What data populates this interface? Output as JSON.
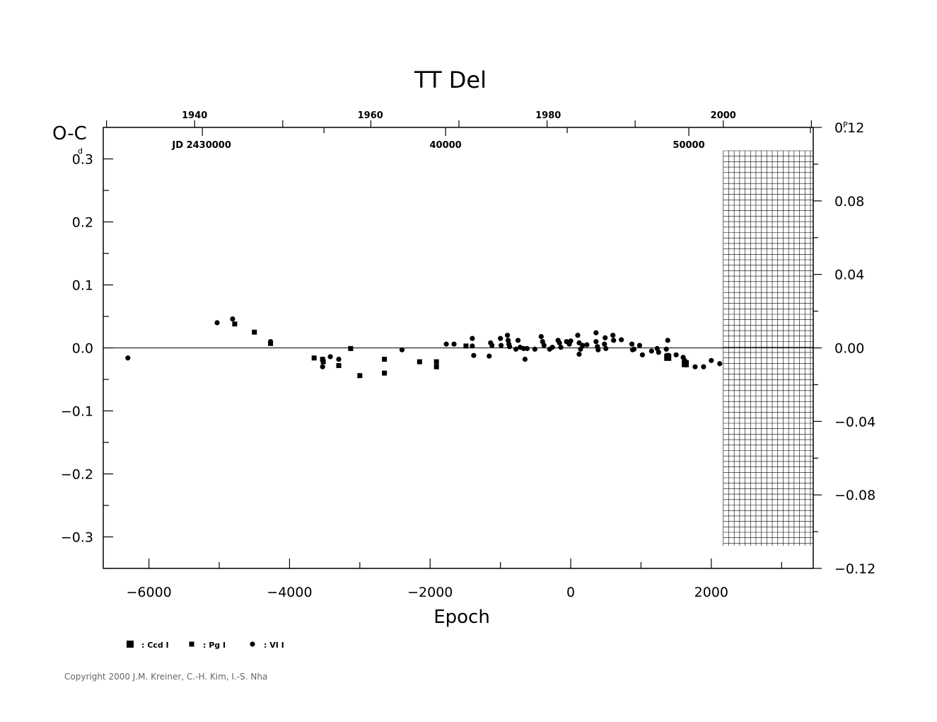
{
  "chart_data": {
    "type": "scatter",
    "title": "TT  Del",
    "ylabel": "O-C",
    "ylabel_unit": "d",
    "right_unit": "P",
    "xlabel": "Epoch",
    "xlim": [
      -6650,
      3450
    ],
    "ylim": [
      -0.35,
      0.35
    ],
    "right_ylim": [
      -0.12,
      0.12
    ],
    "x_ticks": [
      -6000,
      -4000,
      -2000,
      0,
      2000
    ],
    "x_tick_labels": [
      "−6000",
      "−4000",
      "−2000",
      "0",
      "2000"
    ],
    "y_ticks": [
      0.3,
      0.2,
      0.1,
      0.0,
      -0.1,
      -0.2,
      -0.3
    ],
    "y_tick_labels": [
      "0.3",
      "0.2",
      "0.1",
      "0.0",
      "−0.1",
      "−0.2",
      "−0.3"
    ],
    "right_ticks": [
      0.12,
      0.08,
      0.04,
      0.0,
      -0.04,
      -0.08,
      -0.12
    ],
    "right_tick_labels": [
      "0.12",
      "0.08",
      "0.04",
      "0.00",
      "−0.04",
      "−0.08",
      "−0.12"
    ],
    "top_year_ticks": [
      {
        "label": "1940",
        "epoch": -5350
      },
      {
        "label": "1960",
        "epoch": -2850
      },
      {
        "label": "1980",
        "epoch": -320
      },
      {
        "label": "2000",
        "epoch": 2170
      }
    ],
    "jd_ticks": [
      {
        "label": "JD  2430000",
        "epoch": -5250
      },
      {
        "label": "40000",
        "epoch": -1780
      },
      {
        "label": "50000",
        "epoch": 1680
      }
    ],
    "grid": false,
    "zero_line": true,
    "future_hatch_from_epoch": 2170,
    "legend_position": "bottom-left",
    "series": [
      {
        "name": ": Ccd  I",
        "marker": "square-large",
        "points": [
          [
            1380,
            -0.015
          ],
          [
            1630,
            -0.025
          ]
        ]
      },
      {
        "name": ": Pg  I",
        "marker": "square-small",
        "points": [
          [
            -4780,
            0.038
          ],
          [
            -4500,
            0.025
          ],
          [
            -4270,
            0.007
          ],
          [
            -3650,
            -0.016
          ],
          [
            -3530,
            -0.018
          ],
          [
            -3520,
            -0.022
          ],
          [
            -3300,
            -0.028
          ],
          [
            -3130,
            -0.001
          ],
          [
            -3000,
            -0.044
          ],
          [
            -2650,
            -0.04
          ],
          [
            -2650,
            -0.018
          ],
          [
            -2150,
            -0.022
          ],
          [
            -1910,
            -0.022
          ],
          [
            -1910,
            -0.03
          ],
          [
            -1490,
            0.003
          ],
          [
            1380,
            -0.012
          ]
        ]
      },
      {
        "name": ": VI  I",
        "marker": "dot",
        "points": [
          [
            -6300,
            -0.016
          ],
          [
            -5030,
            0.04
          ],
          [
            -4810,
            0.046
          ],
          [
            -4270,
            0.01
          ],
          [
            -3530,
            -0.03
          ],
          [
            -3420,
            -0.014
          ],
          [
            -3300,
            -0.018
          ],
          [
            -2400,
            -0.003
          ],
          [
            -1770,
            0.006
          ],
          [
            -1660,
            0.006
          ],
          [
            -1400,
            0.015
          ],
          [
            -1400,
            0.003
          ],
          [
            -1380,
            -0.012
          ],
          [
            -1160,
            -0.013
          ],
          [
            -1140,
            0.008
          ],
          [
            -1120,
            0.004
          ],
          [
            -1000,
            0.015
          ],
          [
            -990,
            0.004
          ],
          [
            -900,
            0.02
          ],
          [
            -890,
            0.012
          ],
          [
            -880,
            0.006
          ],
          [
            -870,
            0.002
          ],
          [
            -780,
            -0.002
          ],
          [
            -750,
            0.012
          ],
          [
            -720,
            0.001
          ],
          [
            -670,
            -0.001
          ],
          [
            -650,
            -0.018
          ],
          [
            -620,
            -0.001
          ],
          [
            -510,
            -0.002
          ],
          [
            -420,
            0.018
          ],
          [
            -400,
            0.01
          ],
          [
            -380,
            0.004
          ],
          [
            -300,
            -0.002
          ],
          [
            -260,
            0.001
          ],
          [
            -180,
            0.012
          ],
          [
            -160,
            0.008
          ],
          [
            -140,
            0.001
          ],
          [
            -60,
            0.01
          ],
          [
            -20,
            0.006
          ],
          [
            0,
            0.011
          ],
          [
            100,
            0.02
          ],
          [
            120,
            0.008
          ],
          [
            120,
            -0.01
          ],
          [
            140,
            -0.002
          ],
          [
            170,
            0.004
          ],
          [
            230,
            0.005
          ],
          [
            360,
            0.024
          ],
          [
            360,
            0.01
          ],
          [
            380,
            0.002
          ],
          [
            390,
            -0.003
          ],
          [
            480,
            0.006
          ],
          [
            490,
            0.016
          ],
          [
            500,
            -0.001
          ],
          [
            600,
            0.02
          ],
          [
            610,
            0.012
          ],
          [
            720,
            0.013
          ],
          [
            870,
            0.006
          ],
          [
            880,
            -0.003
          ],
          [
            900,
            -0.002
          ],
          [
            980,
            0.004
          ],
          [
            1020,
            -0.011
          ],
          [
            1150,
            -0.005
          ],
          [
            1230,
            -0.001
          ],
          [
            1250,
            -0.007
          ],
          [
            1360,
            -0.002
          ],
          [
            1380,
            0.012
          ],
          [
            1500,
            -0.011
          ],
          [
            1600,
            -0.015
          ],
          [
            1620,
            -0.02
          ],
          [
            1640,
            -0.027
          ],
          [
            1770,
            -0.03
          ],
          [
            1890,
            -0.03
          ],
          [
            2000,
            -0.02
          ],
          [
            2120,
            -0.025
          ]
        ]
      }
    ]
  },
  "legend": [
    {
      "label": ": Ccd  I",
      "marker": "square-large"
    },
    {
      "label": ": Pg  I",
      "marker": "square-small"
    },
    {
      "label": ": VI  I",
      "marker": "dot"
    }
  ],
  "copyright": "Copyright 2000 J.M. Kreiner, C.-H. Kim, I.-S. Nha"
}
